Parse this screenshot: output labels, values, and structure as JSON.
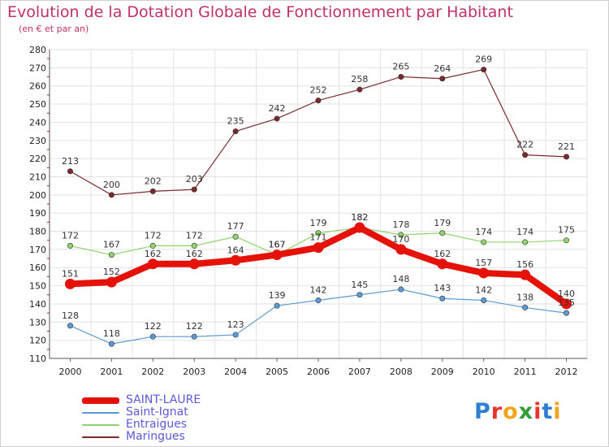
{
  "header": {
    "title": "Evolution de la Dotation Globale de Fonctionnement par Habitant",
    "subtitle": "(en € et par an)"
  },
  "logo": {
    "letters": [
      "P",
      "r",
      "o",
      "x",
      "i",
      "t",
      "i"
    ],
    "colors": [
      "#2f7fd0",
      "#e8362a",
      "#f2a51a",
      "#2f9f3a",
      "#e8362a",
      "#2f7fd0",
      "#f2a51a"
    ]
  },
  "chart_data": {
    "type": "line",
    "title": "Evolution de la Dotation Globale de Fonctionnement par Habitant",
    "subtitle": "(en € et par an)",
    "x": [
      2000,
      2001,
      2002,
      2003,
      2004,
      2005,
      2006,
      2007,
      2008,
      2009,
      2010,
      2011,
      2012
    ],
    "xlabel": "",
    "ylabel": "",
    "ylim": [
      110,
      280
    ],
    "yticks": [
      110,
      120,
      130,
      140,
      150,
      160,
      170,
      180,
      190,
      200,
      210,
      220,
      230,
      240,
      250,
      260,
      270,
      280
    ],
    "grid": true,
    "legend_position": "bottom-left",
    "series": [
      {
        "name": "SAINT-LAURE",
        "values": [
          151,
          152,
          162,
          162,
          164,
          167,
          171,
          182,
          170,
          162,
          157,
          156,
          140
        ],
        "color": "#e5120a",
        "emphasis": true
      },
      {
        "name": "Saint-Ignat",
        "values": [
          128,
          118,
          122,
          122,
          123,
          139,
          142,
          145,
          148,
          143,
          142,
          138,
          135
        ],
        "color": "#5b9bd5"
      },
      {
        "name": "Entraigues",
        "values": [
          172,
          167,
          172,
          172,
          177,
          167,
          179,
          182,
          178,
          179,
          174,
          174,
          175
        ],
        "color": "#8fd46b"
      },
      {
        "name": "Maringues",
        "values": [
          213,
          200,
          202,
          203,
          235,
          242,
          252,
          258,
          265,
          264,
          269,
          222,
          221
        ],
        "color": "#7a2a2a"
      }
    ]
  }
}
